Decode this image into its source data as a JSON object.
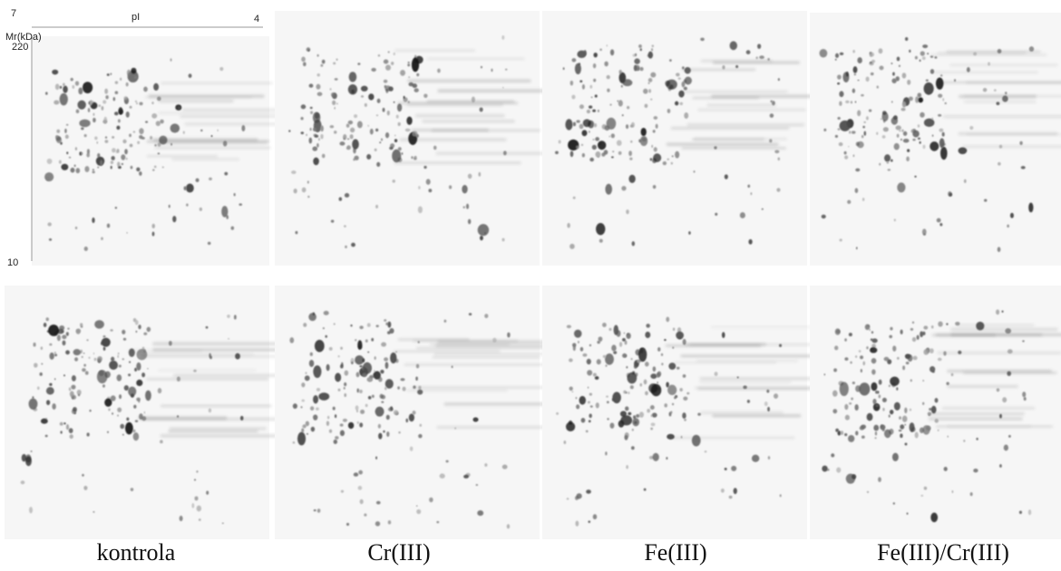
{
  "axis": {
    "pi_left": "7",
    "pi_label": "pI",
    "pi_right": "4",
    "mr_label": "Mr(kDa)",
    "mr_top": "220",
    "mr_bottom": "10"
  },
  "labels": [
    "kontrola",
    "Cr(III)",
    "Fe(III)",
    "Fe(III)/Cr(III)"
  ]
}
